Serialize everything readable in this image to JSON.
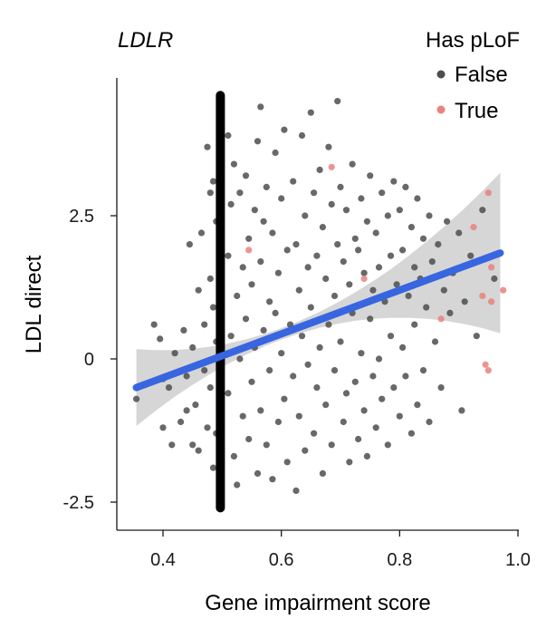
{
  "chart_data": {
    "type": "scatter",
    "title": "LDLR",
    "xlabel": "Gene impairment score",
    "ylabel": "LDL direct",
    "xlim": [
      0.33,
      1.0
    ],
    "ylim": [
      -3.0,
      4.9
    ],
    "xticks": [
      0.4,
      0.6,
      0.8,
      1.0
    ],
    "xtick_labels": [
      "0.4",
      "0.6",
      "0.8",
      "1.0"
    ],
    "yticks": [
      2.5,
      0,
      -2.5
    ],
    "ytick_labels": [
      "2.5",
      "0",
      "-2.5"
    ],
    "grid": false,
    "legend": {
      "title": "Has pLoF",
      "placement": "top-right",
      "entries": [
        {
          "label": "False",
          "color": "#4d4d4d"
        },
        {
          "label": "True",
          "color": "#e8837e"
        }
      ]
    },
    "dense_column": {
      "x": 0.497,
      "y_range": [
        -2.6,
        4.6
      ],
      "color": "#000000"
    },
    "series": [
      {
        "name": "False",
        "color": "#4d4d4d",
        "points": [
          [
            0.355,
            -0.7
          ],
          [
            0.385,
            0.6
          ],
          [
            0.395,
            0.35
          ],
          [
            0.4,
            -0.35
          ],
          [
            0.4,
            -1.2
          ],
          [
            0.41,
            -0.5
          ],
          [
            0.415,
            -1.5
          ],
          [
            0.42,
            0.1
          ],
          [
            0.43,
            -1.1
          ],
          [
            0.435,
            0.5
          ],
          [
            0.44,
            -0.3
          ],
          [
            0.44,
            -0.9
          ],
          [
            0.445,
            2.0
          ],
          [
            0.45,
            -1.5
          ],
          [
            0.45,
            0.2
          ],
          [
            0.455,
            -0.8
          ],
          [
            0.46,
            1.2
          ],
          [
            0.46,
            -1.6
          ],
          [
            0.465,
            2.2
          ],
          [
            0.47,
            0.6
          ],
          [
            0.47,
            -0.2
          ],
          [
            0.475,
            3.7
          ],
          [
            0.475,
            -1.2
          ],
          [
            0.48,
            2.9
          ],
          [
            0.48,
            1.4
          ],
          [
            0.48,
            -0.5
          ],
          [
            0.485,
            3.1
          ],
          [
            0.485,
            0.9
          ],
          [
            0.485,
            -1.9
          ],
          [
            0.49,
            2.4
          ],
          [
            0.49,
            0.3
          ],
          [
            0.49,
            -1.3
          ],
          [
            0.51,
            3.9
          ],
          [
            0.51,
            1.8
          ],
          [
            0.51,
            -0.6
          ],
          [
            0.515,
            2.7
          ],
          [
            0.515,
            0.4
          ],
          [
            0.52,
            3.4
          ],
          [
            0.52,
            -1.7
          ],
          [
            0.525,
            1.1
          ],
          [
            0.525,
            -2.2
          ],
          [
            0.53,
            2.9
          ],
          [
            0.53,
            0.0
          ],
          [
            0.535,
            1.6
          ],
          [
            0.535,
            -1.0
          ],
          [
            0.54,
            3.2
          ],
          [
            0.54,
            0.7
          ],
          [
            0.545,
            2.1
          ],
          [
            0.545,
            -1.4
          ],
          [
            0.55,
            1.3
          ],
          [
            0.55,
            -0.4
          ],
          [
            0.555,
            2.6
          ],
          [
            0.555,
            0.2
          ],
          [
            0.56,
            3.8
          ],
          [
            0.56,
            -2.0
          ],
          [
            0.565,
            4.4
          ],
          [
            0.565,
            1.7
          ],
          [
            0.565,
            -0.9
          ],
          [
            0.57,
            2.4
          ],
          [
            0.57,
            0.5
          ],
          [
            0.575,
            3.0
          ],
          [
            0.575,
            -1.5
          ],
          [
            0.58,
            1.0
          ],
          [
            0.58,
            -0.2
          ],
          [
            0.585,
            2.2
          ],
          [
            0.585,
            -2.1
          ],
          [
            0.59,
            3.6
          ],
          [
            0.59,
            0.8
          ],
          [
            0.595,
            1.5
          ],
          [
            0.595,
            -1.1
          ],
          [
            0.6,
            2.8
          ],
          [
            0.6,
            0.1
          ],
          [
            0.605,
            4.0
          ],
          [
            0.605,
            -0.7
          ],
          [
            0.61,
            1.9
          ],
          [
            0.61,
            -1.8
          ],
          [
            0.615,
            0.6
          ],
          [
            0.62,
            3.1
          ],
          [
            0.62,
            -0.3
          ],
          [
            0.625,
            2.0
          ],
          [
            0.625,
            -2.3
          ],
          [
            0.63,
            1.2
          ],
          [
            0.63,
            -1.0
          ],
          [
            0.635,
            3.9
          ],
          [
            0.635,
            0.4
          ],
          [
            0.64,
            2.5
          ],
          [
            0.64,
            -1.6
          ],
          [
            0.645,
            1.6
          ],
          [
            0.645,
            -0.1
          ],
          [
            0.65,
            4.3
          ],
          [
            0.65,
            0.9
          ],
          [
            0.655,
            2.9
          ],
          [
            0.655,
            -1.3
          ],
          [
            0.66,
            1.8
          ],
          [
            0.66,
            -0.5
          ],
          [
            0.665,
            3.3
          ],
          [
            0.665,
            0.2
          ],
          [
            0.67,
            2.3
          ],
          [
            0.67,
            -2.0
          ],
          [
            0.675,
            1.4
          ],
          [
            0.675,
            -0.8
          ],
          [
            0.68,
            3.7
          ],
          [
            0.68,
            0.6
          ],
          [
            0.685,
            2.7
          ],
          [
            0.685,
            -1.5
          ],
          [
            0.69,
            1.1
          ],
          [
            0.69,
            -0.2
          ],
          [
            0.695,
            4.5
          ],
          [
            0.695,
            2.0
          ],
          [
            0.7,
            3.0
          ],
          [
            0.7,
            0.3
          ],
          [
            0.705,
            1.7
          ],
          [
            0.705,
            -1.1
          ],
          [
            0.71,
            2.6
          ],
          [
            0.71,
            -0.6
          ],
          [
            0.715,
            1.3
          ],
          [
            0.715,
            -1.8
          ],
          [
            0.72,
            3.4
          ],
          [
            0.72,
            0.8
          ],
          [
            0.725,
            2.1
          ],
          [
            0.725,
            -0.4
          ],
          [
            0.73,
            1.9
          ],
          [
            0.73,
            -1.4
          ],
          [
            0.735,
            2.8
          ],
          [
            0.735,
            0.1
          ],
          [
            0.74,
            1.5
          ],
          [
            0.74,
            -0.9
          ],
          [
            0.745,
            2.4
          ],
          [
            0.745,
            -1.7
          ],
          [
            0.75,
            3.2
          ],
          [
            0.75,
            0.7
          ],
          [
            0.755,
            1.2
          ],
          [
            0.755,
            -0.3
          ],
          [
            0.76,
            2.2
          ],
          [
            0.76,
            -1.2
          ],
          [
            0.765,
            1.6
          ],
          [
            0.765,
            0.0
          ],
          [
            0.77,
            2.9
          ],
          [
            0.77,
            -0.7
          ],
          [
            0.775,
            1.0
          ],
          [
            0.78,
            2.5
          ],
          [
            0.78,
            -1.5
          ],
          [
            0.785,
            1.8
          ],
          [
            0.785,
            0.4
          ],
          [
            0.79,
            3.1
          ],
          [
            0.79,
            -0.5
          ],
          [
            0.795,
            1.3
          ],
          [
            0.8,
            2.6
          ],
          [
            0.8,
            -1.0
          ],
          [
            0.805,
            1.9
          ],
          [
            0.805,
            0.2
          ],
          [
            0.81,
            3.0
          ],
          [
            0.81,
            -0.3
          ],
          [
            0.815,
            1.1
          ],
          [
            0.82,
            2.3
          ],
          [
            0.82,
            -1.3
          ],
          [
            0.825,
            1.6
          ],
          [
            0.825,
            0.6
          ],
          [
            0.83,
            2.8
          ],
          [
            0.83,
            -0.8
          ],
          [
            0.835,
            1.4
          ],
          [
            0.84,
            2.1
          ],
          [
            0.84,
            -0.2
          ],
          [
            0.845,
            0.9
          ],
          [
            0.85,
            2.5
          ],
          [
            0.85,
            -1.1
          ],
          [
            0.855,
            1.7
          ],
          [
            0.86,
            0.3
          ],
          [
            0.865,
            2.0
          ],
          [
            0.87,
            -0.5
          ],
          [
            0.875,
            1.2
          ],
          [
            0.88,
            2.4
          ],
          [
            0.885,
            0.8
          ],
          [
            0.89,
            1.5
          ],
          [
            0.9,
            2.2
          ],
          [
            0.905,
            -0.9
          ],
          [
            0.91,
            1.0
          ],
          [
            0.92,
            1.8
          ],
          [
            0.93,
            0.4
          ],
          [
            0.94,
            2.6
          ],
          [
            0.96,
            1.4
          ]
        ]
      },
      {
        "name": "True",
        "color": "#e8837e",
        "points": [
          [
            0.545,
            1.9
          ],
          [
            0.685,
            3.35
          ],
          [
            0.74,
            1.4
          ],
          [
            0.87,
            0.7
          ],
          [
            0.925,
            2.3
          ],
          [
            0.94,
            1.1
          ],
          [
            0.945,
            -0.1
          ],
          [
            0.95,
            -0.2
          ],
          [
            0.95,
            2.9
          ],
          [
            0.955,
            1.0
          ],
          [
            0.955,
            1.6
          ],
          [
            0.975,
            1.2
          ]
        ]
      }
    ],
    "trend_line": {
      "color": "#3865e0",
      "x": [
        0.355,
        0.97
      ],
      "y": [
        -0.5,
        1.85
      ],
      "ci_color": "#cfcfcf"
    }
  }
}
